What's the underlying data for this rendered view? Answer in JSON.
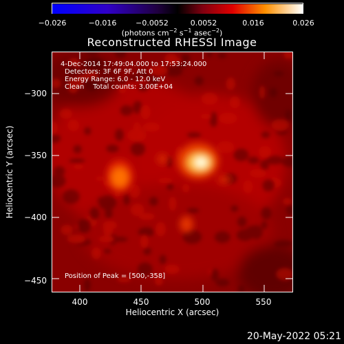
{
  "colorbar": {
    "ticks": [
      "−0.026",
      "−0.016",
      "−0.0052",
      "0.0052",
      "0.016",
      "0.026"
    ],
    "units_prefix": "(photons cm",
    "units_sup1": "−2",
    "units_mid": " s",
    "units_sup2": "−1",
    "units_mid2": " asec",
    "units_sup3": "−2",
    "units_suffix": ")"
  },
  "title": "Reconstructed RHESSI Image",
  "info": {
    "time_range": "4-Dec-2014 17:49:04.000 to 17:53:24.000",
    "detectors": "Detectors: 3F 6F 9F, Att 0",
    "energy": "Energy Range: 6.0 - 12.0 keV",
    "clean": "Clean    Total counts: 3.00E+04",
    "peak": "Position of Peak = [500,-358]"
  },
  "axes": {
    "xlabel": "Heliocentric X (arcsec)",
    "ylabel": "Heliocentric Y (arcsec)",
    "xticks": [
      "400",
      "450",
      "500",
      "550"
    ],
    "yticks": [
      "−300",
      "−350",
      "−400",
      "−450"
    ]
  },
  "timestamp": "20-May-2022 05:21",
  "colors": {
    "frame": "#ffffff",
    "background": "#000000"
  }
}
